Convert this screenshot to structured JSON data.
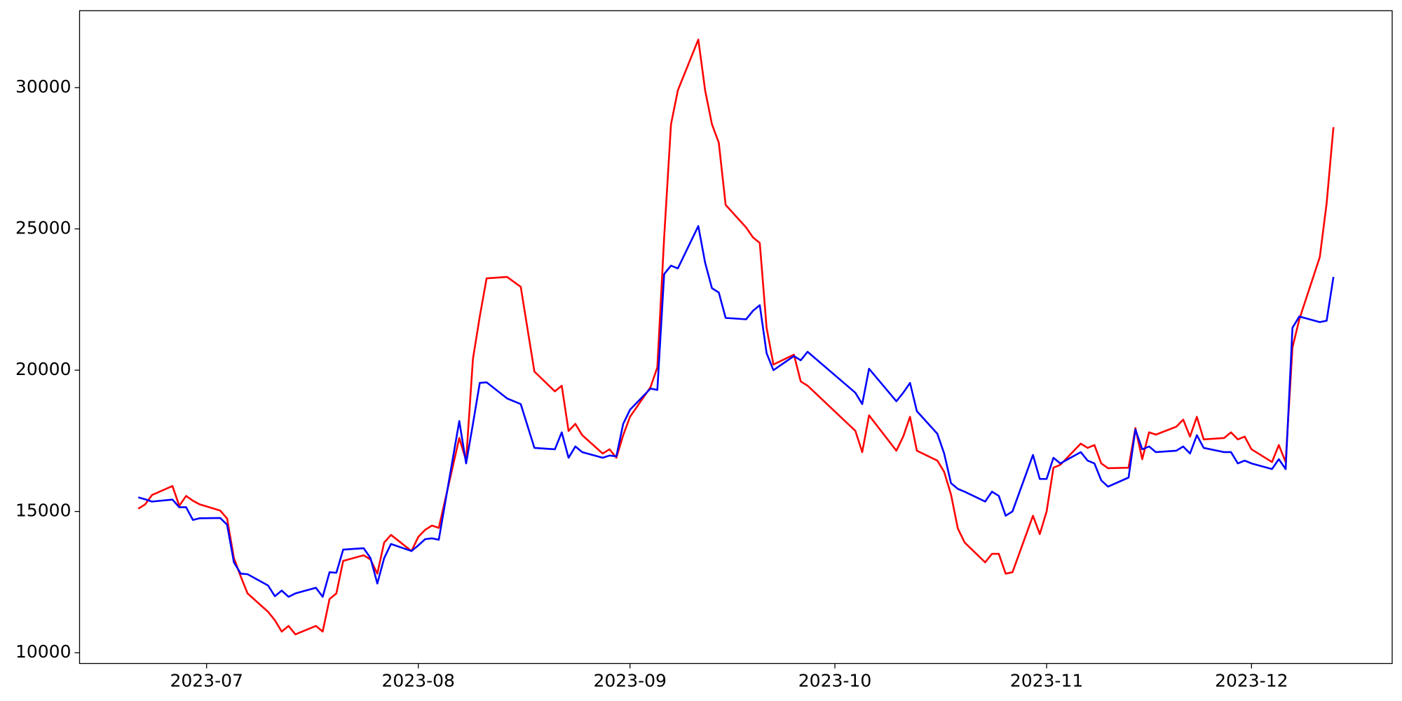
{
  "chart_data": {
    "type": "line",
    "x": [
      19529,
      19530,
      19531,
      19534,
      19535,
      19536,
      19537,
      19538,
      19541,
      19542,
      19543,
      19544,
      19545,
      19548,
      19549,
      19550,
      19551,
      19552,
      19555,
      19556,
      19557,
      19558,
      19559,
      19562,
      19563,
      19564,
      19565,
      19566,
      19569,
      19570,
      19571,
      19572,
      19573,
      19576,
      19577,
      19578,
      19579,
      19580,
      19583,
      19585,
      19587,
      19590,
      19591,
      19592,
      19593,
      19594,
      19597,
      19598,
      19599,
      19600,
      19601,
      19604,
      19605,
      19606,
      19607,
      19608,
      19611,
      19612,
      19613,
      19614,
      19615,
      19618,
      19619,
      19620,
      19621,
      19622,
      19625,
      19626,
      19627,
      19634,
      19635,
      19636,
      19640,
      19641,
      19642,
      19643,
      19646,
      19647,
      19648,
      19649,
      19650,
      19653,
      19654,
      19655,
      19656,
      19657,
      19660,
      19661,
      19662,
      19663,
      19664,
      19667,
      19668,
      19669,
      19670,
      19671,
      19674,
      19675,
      19676,
      19677,
      19678,
      19681,
      19682,
      19683,
      19684,
      19685,
      19688,
      19689,
      19690,
      19691,
      19692,
      19695,
      19696,
      19697,
      19698,
      19699,
      19702,
      19703,
      19704
    ],
    "series": [
      {
        "color": "#ff0000",
        "values": [
          15100,
          15250,
          15580,
          15900,
          15200,
          15550,
          15380,
          15250,
          15030,
          14750,
          13350,
          12700,
          12100,
          11450,
          11150,
          10750,
          10950,
          10650,
          10950,
          10750,
          11900,
          12100,
          13250,
          13450,
          13300,
          12800,
          13900,
          14170,
          13600,
          14100,
          14350,
          14500,
          14420,
          17600,
          16800,
          20400,
          21900,
          23250,
          23300,
          22950,
          19950,
          19250,
          19450,
          17850,
          18100,
          17700,
          17050,
          17200,
          16900,
          17700,
          18350,
          19400,
          20100,
          24700,
          28700,
          29900,
          31700,
          29900,
          28700,
          28050,
          25850,
          25050,
          24700,
          24500,
          21500,
          20200,
          20550,
          19600,
          19450,
          17850,
          17100,
          18400,
          17150,
          17650,
          18350,
          17150,
          16800,
          16400,
          15600,
          14400,
          13900,
          13200,
          13500,
          13500,
          12800,
          12850,
          14850,
          14200,
          15000,
          16550,
          16650,
          17400,
          17250,
          17350,
          16700,
          16530,
          16550,
          17950,
          16850,
          17800,
          17720,
          18000,
          18250,
          17650,
          18350,
          17550,
          17600,
          17800,
          17550,
          17650,
          17200,
          16750,
          17350,
          16750,
          20800,
          21800,
          24000,
          25900,
          28600
        ]
      },
      {
        "color": "#0000ff",
        "values": [
          15500,
          15430,
          15350,
          15420,
          15150,
          15150,
          14700,
          14760,
          14770,
          14530,
          13200,
          12800,
          12780,
          12380,
          12000,
          12200,
          11980,
          12100,
          12300,
          11980,
          12850,
          12830,
          13650,
          13700,
          13350,
          12450,
          13350,
          13850,
          13600,
          13800,
          14020,
          14050,
          14000,
          18200,
          16700,
          18100,
          19550,
          19570,
          19000,
          18800,
          17250,
          17200,
          17800,
          16900,
          17300,
          17100,
          16900,
          16980,
          16950,
          18100,
          18600,
          19350,
          19300,
          23400,
          23700,
          23600,
          25100,
          23800,
          22900,
          22750,
          21850,
          21800,
          22100,
          22300,
          20600,
          20000,
          20500,
          20350,
          20650,
          19200,
          18800,
          20050,
          18900,
          19200,
          19550,
          18550,
          17750,
          17050,
          16000,
          15800,
          15700,
          15350,
          15700,
          15550,
          14850,
          15000,
          17000,
          16150,
          16150,
          16900,
          16700,
          17100,
          16800,
          16700,
          16100,
          15880,
          16200,
          17900,
          17200,
          17300,
          17100,
          17150,
          17300,
          17050,
          17700,
          17250,
          17100,
          17100,
          16700,
          16800,
          16700,
          16500,
          16850,
          16500,
          21500,
          21900,
          21700,
          21750,
          23300
        ]
      }
    ],
    "xlim": [
      19520.4,
      19712.6
    ],
    "xticks": [
      {
        "value": 19539,
        "label": "2023-07"
      },
      {
        "value": 19570,
        "label": "2023-08"
      },
      {
        "value": 19601,
        "label": "2023-09"
      },
      {
        "value": 19631,
        "label": "2023-10"
      },
      {
        "value": 19662,
        "label": "2023-11"
      },
      {
        "value": 19692,
        "label": "2023-12"
      }
    ],
    "ylim": [
      9620,
      32720
    ],
    "yticks": [
      10000,
      15000,
      20000,
      25000,
      30000
    ],
    "grid": false
  }
}
